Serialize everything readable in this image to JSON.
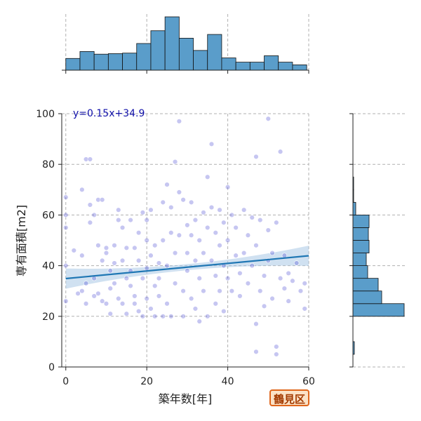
{
  "colors": {
    "hist": "#5a9dca",
    "point": "#3333cc",
    "line": "#1f77b4",
    "band": "#aac8e6",
    "badge_border": "#e0661b",
    "badge_bg": "#fbe2c6",
    "badge_text": "#a33a00",
    "equation": "#1111aa"
  },
  "chart_data": {
    "type": "scatter",
    "xlabel": "築年数[年]",
    "ylabel": "専有面積[m2]",
    "xlim": [
      -1,
      60
    ],
    "ylim": [
      0,
      100
    ],
    "x_ticks": [
      "0",
      "20",
      "40",
      "60"
    ],
    "y_ticks": [
      "0",
      "20",
      "40",
      "60",
      "80",
      "100"
    ],
    "grid": true,
    "annotation": "y=0.15x+34.9",
    "badge": "鶴見区",
    "regression": {
      "slope": 0.15,
      "intercept": 34.9,
      "x_range": [
        0,
        60
      ]
    },
    "x_histogram": {
      "bin_edges": [
        0,
        3.5,
        7,
        10.5,
        14,
        17.5,
        21,
        24.5,
        28,
        31.5,
        35,
        38.5,
        42,
        45.5,
        49,
        52.5,
        56,
        59.5
      ],
      "heights": [
        22,
        35,
        30,
        31,
        32,
        50,
        74,
        100,
        60,
        37,
        67,
        23,
        15,
        15,
        27,
        15,
        10
      ]
    },
    "y_histogram": {
      "bin_edges": [
        5,
        10,
        15,
        20,
        25,
        30,
        35,
        40,
        45,
        50,
        55,
        60,
        65,
        70,
        75,
        80,
        85,
        90,
        95,
        100
      ],
      "heights": [
        2,
        0,
        0,
        73,
        41,
        36,
        21,
        19,
        23,
        22,
        23,
        4,
        1,
        1,
        0,
        0,
        0,
        0,
        0
      ]
    },
    "points": [
      [
        0,
        55
      ],
      [
        0,
        60
      ],
      [
        0,
        40
      ],
      [
        0,
        26
      ],
      [
        0,
        67
      ],
      [
        2,
        46
      ],
      [
        3,
        29
      ],
      [
        4,
        70
      ],
      [
        4,
        44
      ],
      [
        4,
        30
      ],
      [
        5,
        25
      ],
      [
        5,
        33
      ],
      [
        5,
        82
      ],
      [
        6,
        82
      ],
      [
        6,
        57
      ],
      [
        6,
        64
      ],
      [
        7,
        60
      ],
      [
        7,
        35
      ],
      [
        7,
        28
      ],
      [
        8,
        66
      ],
      [
        8,
        48
      ],
      [
        8,
        29
      ],
      [
        9,
        66
      ],
      [
        9,
        42
      ],
      [
        9,
        26
      ],
      [
        10,
        25
      ],
      [
        10,
        45
      ],
      [
        10,
        47
      ],
      [
        11,
        21
      ],
      [
        11,
        31
      ],
      [
        11,
        38
      ],
      [
        12,
        41
      ],
      [
        12,
        48
      ],
      [
        12,
        33
      ],
      [
        13,
        58
      ],
      [
        13,
        62
      ],
      [
        13,
        27
      ],
      [
        14,
        55
      ],
      [
        14,
        42
      ],
      [
        14,
        25
      ],
      [
        15,
        47
      ],
      [
        15,
        35
      ],
      [
        15,
        21
      ],
      [
        16,
        58
      ],
      [
        16,
        38
      ],
      [
        16,
        32
      ],
      [
        17,
        28
      ],
      [
        17,
        47
      ],
      [
        17,
        25
      ],
      [
        18,
        53
      ],
      [
        18,
        42
      ],
      [
        18,
        22
      ],
      [
        19,
        61
      ],
      [
        19,
        35
      ],
      [
        19,
        20
      ],
      [
        20,
        50
      ],
      [
        20,
        39
      ],
      [
        20,
        27
      ],
      [
        20,
        58
      ],
      [
        21,
        23
      ],
      [
        21,
        44
      ],
      [
        21,
        62
      ],
      [
        22,
        20
      ],
      [
        22,
        32
      ],
      [
        22,
        48
      ],
      [
        23,
        28
      ],
      [
        23,
        35
      ],
      [
        23,
        41
      ],
      [
        24,
        20
      ],
      [
        24,
        50
      ],
      [
        24,
        65
      ],
      [
        25,
        72
      ],
      [
        25,
        40
      ],
      [
        25,
        25
      ],
      [
        26,
        53
      ],
      [
        26,
        63
      ],
      [
        26,
        20
      ],
      [
        27,
        81
      ],
      [
        27,
        45
      ],
      [
        27,
        33
      ],
      [
        28,
        97
      ],
      [
        28,
        69
      ],
      [
        28,
        52
      ],
      [
        29,
        30
      ],
      [
        29,
        66
      ],
      [
        29,
        20
      ],
      [
        30,
        45
      ],
      [
        30,
        56
      ],
      [
        30,
        38
      ],
      [
        31,
        52
      ],
      [
        31,
        27
      ],
      [
        31,
        65
      ],
      [
        32,
        42
      ],
      [
        32,
        58
      ],
      [
        32,
        23
      ],
      [
        33,
        35
      ],
      [
        33,
        50
      ],
      [
        33,
        18
      ],
      [
        34,
        61
      ],
      [
        34,
        45
      ],
      [
        34,
        30
      ],
      [
        35,
        75
      ],
      [
        35,
        55
      ],
      [
        35,
        20
      ],
      [
        36,
        88
      ],
      [
        36,
        63
      ],
      [
        36,
        42
      ],
      [
        37,
        53
      ],
      [
        37,
        36
      ],
      [
        37,
        25
      ],
      [
        38,
        62
      ],
      [
        38,
        48
      ],
      [
        38,
        30
      ],
      [
        39,
        57
      ],
      [
        39,
        40
      ],
      [
        39,
        22
      ],
      [
        40,
        71
      ],
      [
        40,
        35
      ],
      [
        40,
        50
      ],
      [
        41,
        60
      ],
      [
        41,
        30
      ],
      [
        42,
        44
      ],
      [
        42,
        55
      ],
      [
        43,
        37
      ],
      [
        43,
        28
      ],
      [
        44,
        62
      ],
      [
        44,
        45
      ],
      [
        45,
        33
      ],
      [
        45,
        52
      ],
      [
        46,
        40
      ],
      [
        46,
        59
      ],
      [
        47,
        83
      ],
      [
        47,
        17
      ],
      [
        47,
        6
      ],
      [
        47,
        48
      ],
      [
        48,
        58
      ],
      [
        48,
        30
      ],
      [
        49,
        36
      ],
      [
        49,
        24
      ],
      [
        50,
        98
      ],
      [
        50,
        54
      ],
      [
        50,
        42
      ],
      [
        51,
        45
      ],
      [
        51,
        27
      ],
      [
        52,
        57
      ],
      [
        52,
        8
      ],
      [
        52,
        5
      ],
      [
        53,
        85
      ],
      [
        53,
        35
      ],
      [
        54,
        31
      ],
      [
        54,
        44
      ],
      [
        55,
        26
      ],
      [
        55,
        37
      ],
      [
        56,
        34
      ],
      [
        57,
        41
      ],
      [
        58,
        30
      ],
      [
        59,
        23
      ],
      [
        59,
        33
      ]
    ]
  }
}
